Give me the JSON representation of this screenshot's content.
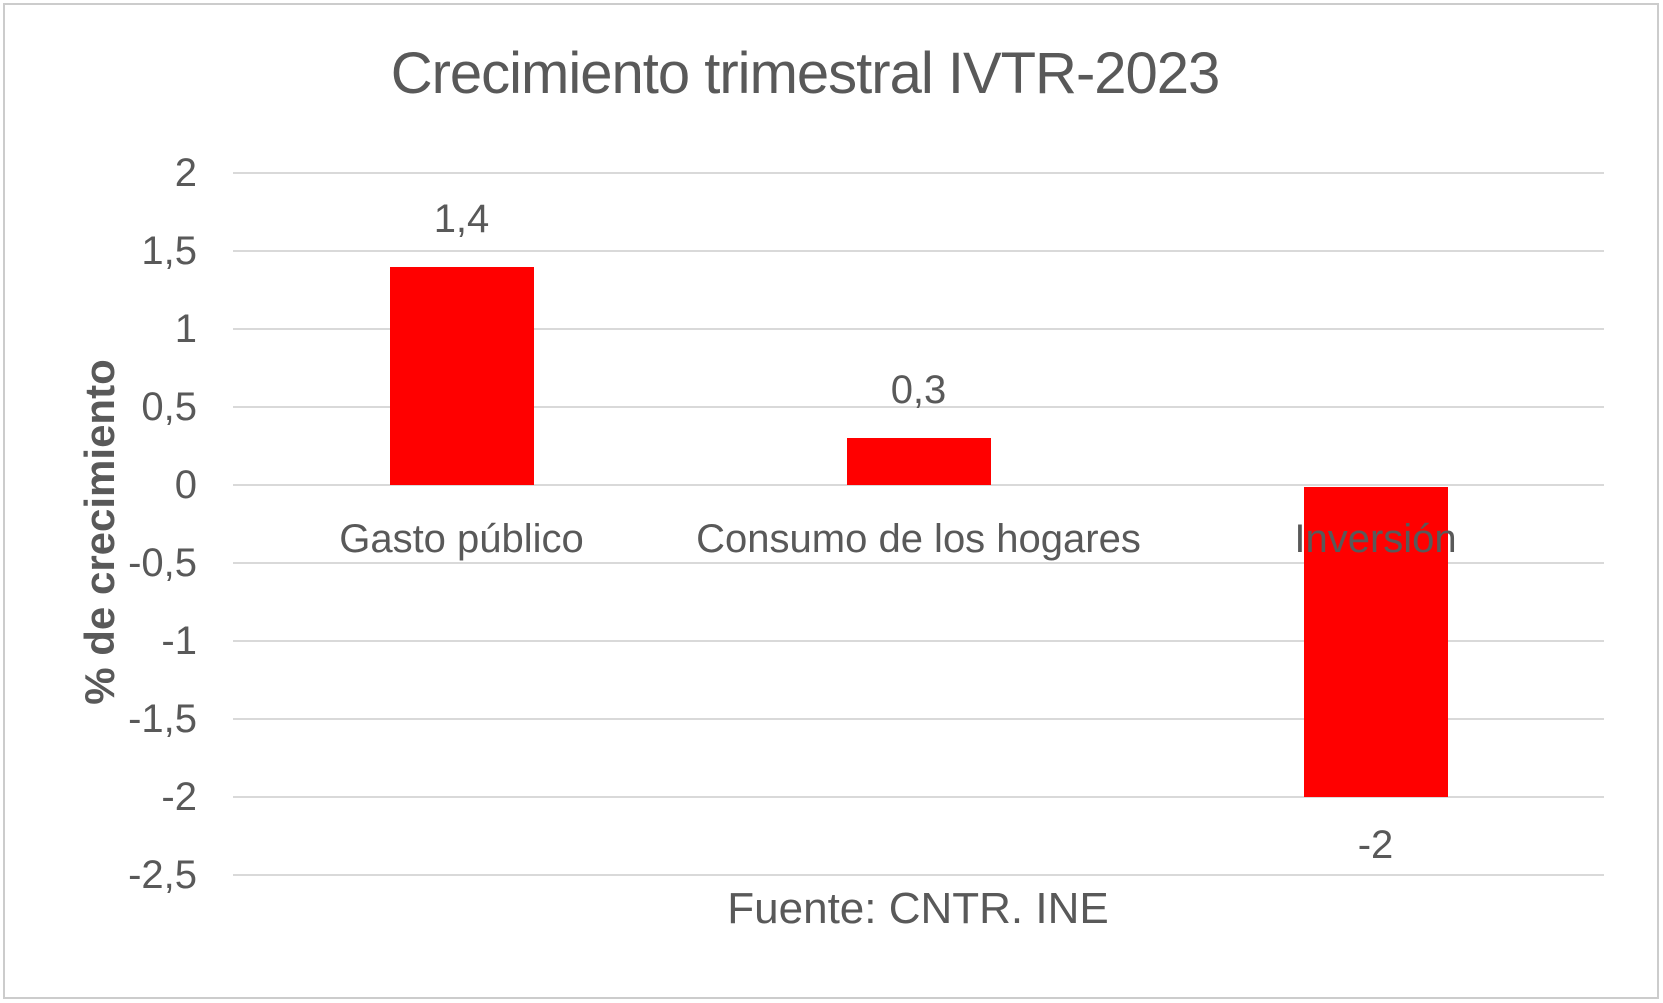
{
  "chart_data": {
    "type": "bar",
    "title": "Crecimiento trimestral IVTR-2023",
    "categories": [
      "Gasto público",
      "Consumo de los hogares",
      "Inversión"
    ],
    "values": [
      1.4,
      0.3,
      -2
    ],
    "value_labels": [
      "1,4",
      "0,3",
      "-2"
    ],
    "ylabel": "% de crecimiento",
    "xlabel": "",
    "ylim": [
      -2.5,
      2
    ],
    "ytick_step": 0.5,
    "ytick_labels": [
      "2",
      "1,5",
      "1",
      "0,5",
      "0",
      "-0,5",
      "-1",
      "-1,5",
      "-2",
      "-2,5"
    ],
    "source_note": "Fuente: CNTR. INE",
    "legend": "none",
    "grid": "horizontal",
    "bar_color": "#ff0000",
    "gridline_color": "#d9d9d9",
    "text_color": "#595959",
    "background": "#ffffff",
    "frame_border_color": "#cccccc"
  }
}
